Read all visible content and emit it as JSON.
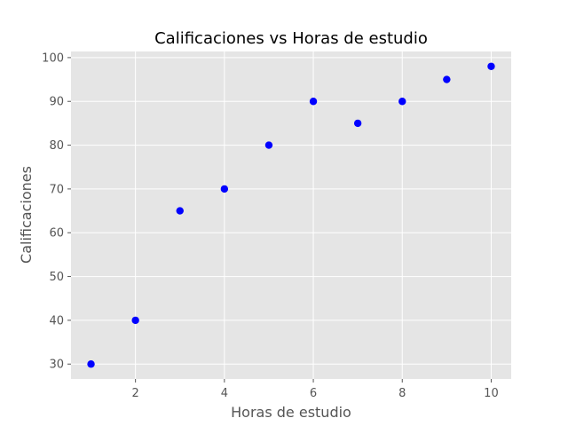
{
  "chart_data": {
    "type": "scatter",
    "title": "Calificaciones vs Horas de estudio",
    "xlabel": "Horas de estudio",
    "ylabel": "Calificaciones",
    "x": [
      1,
      2,
      3,
      4,
      5,
      6,
      7,
      8,
      9,
      10
    ],
    "y": [
      30,
      40,
      65,
      70,
      80,
      90,
      85,
      90,
      95,
      98
    ],
    "xlim": [
      0.55,
      10.45
    ],
    "ylim": [
      26.6,
      101.4
    ],
    "xticks": [
      2,
      4,
      6,
      8,
      10
    ],
    "yticks": [
      30,
      40,
      50,
      60,
      70,
      80,
      90,
      100
    ],
    "grid": true,
    "colors": {
      "point": "#0000ff",
      "plot_background": "#e5e5e5",
      "grid": "#ffffff",
      "tick_text": "#555555"
    }
  }
}
